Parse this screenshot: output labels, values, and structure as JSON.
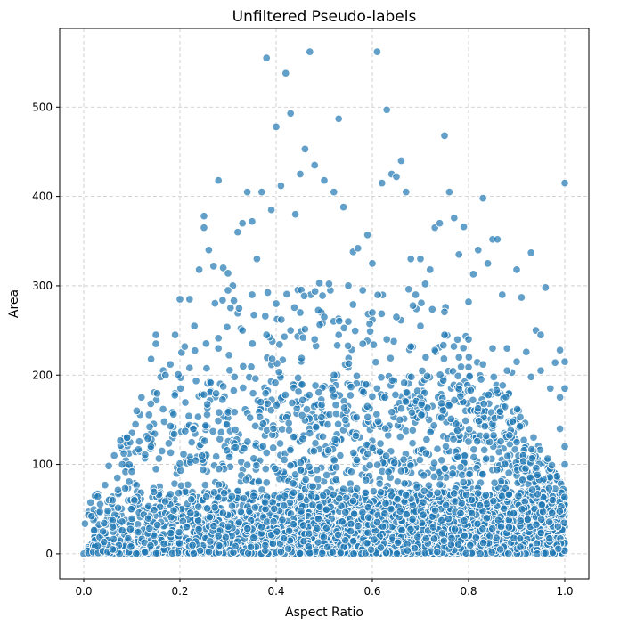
{
  "chart_data": {
    "type": "scatter",
    "title": "Unfiltered Pseudo-labels",
    "xlabel": "Aspect Ratio",
    "ylabel": "Area",
    "xlim": [
      -0.05,
      1.05
    ],
    "ylim": [
      -28,
      588
    ],
    "x_ticks": [
      0.0,
      0.2,
      0.4,
      0.6,
      0.8,
      1.0
    ],
    "x_tick_labels": [
      "0.0",
      "0.2",
      "0.4",
      "0.6",
      "0.8",
      "1.0"
    ],
    "y_ticks": [
      0,
      100,
      200,
      300,
      400,
      500
    ],
    "y_tick_labels": [
      "0",
      "100",
      "200",
      "300",
      "400",
      "500"
    ],
    "grid": true,
    "marker_color": "#1f77b4",
    "marker_alpha": 0.7,
    "marker_edge_color": "#ffffff",
    "series": [
      {
        "points": [
          [
            0.0,
            0
          ],
          [
            0.01,
            1
          ],
          [
            0.02,
            2
          ],
          [
            0.03,
            1
          ],
          [
            0.04,
            3
          ],
          [
            0.05,
            2
          ],
          [
            0.06,
            5
          ],
          [
            0.04,
            25
          ],
          [
            0.05,
            48
          ],
          [
            0.06,
            60
          ],
          [
            0.07,
            85
          ],
          [
            0.08,
            100
          ],
          [
            0.09,
            130
          ],
          [
            0.1,
            92
          ],
          [
            0.11,
            160
          ],
          [
            0.12,
            175
          ],
          [
            0.14,
            218
          ],
          [
            0.15,
            235
          ],
          [
            0.15,
            245
          ],
          [
            0.16,
            198
          ],
          [
            0.17,
            200
          ],
          [
            0.18,
            212
          ],
          [
            0.19,
            245
          ],
          [
            0.2,
            285
          ],
          [
            0.21,
            232
          ],
          [
            0.22,
            285
          ],
          [
            0.22,
            208
          ],
          [
            0.23,
            255
          ],
          [
            0.24,
            318
          ],
          [
            0.25,
            378
          ],
          [
            0.25,
            365
          ],
          [
            0.26,
            340
          ],
          [
            0.27,
            322
          ],
          [
            0.28,
            418
          ],
          [
            0.29,
            320
          ],
          [
            0.3,
            314
          ],
          [
            0.31,
            300
          ],
          [
            0.32,
            360
          ],
          [
            0.33,
            370
          ],
          [
            0.34,
            405
          ],
          [
            0.35,
            372
          ],
          [
            0.36,
            330
          ],
          [
            0.37,
            405
          ],
          [
            0.38,
            555
          ],
          [
            0.39,
            385
          ],
          [
            0.4,
            478
          ],
          [
            0.41,
            412
          ],
          [
            0.42,
            538
          ],
          [
            0.43,
            493
          ],
          [
            0.44,
            380
          ],
          [
            0.45,
            425
          ],
          [
            0.46,
            453
          ],
          [
            0.47,
            562
          ],
          [
            0.48,
            435
          ],
          [
            0.49,
            303
          ],
          [
            0.5,
            418
          ],
          [
            0.51,
            302
          ],
          [
            0.52,
            405
          ],
          [
            0.53,
            487
          ],
          [
            0.54,
            388
          ],
          [
            0.55,
            300
          ],
          [
            0.56,
            338
          ],
          [
            0.57,
            342
          ],
          [
            0.58,
            295
          ],
          [
            0.59,
            357
          ],
          [
            0.6,
            325
          ],
          [
            0.61,
            562
          ],
          [
            0.62,
            415
          ],
          [
            0.63,
            497
          ],
          [
            0.64,
            425
          ],
          [
            0.65,
            422
          ],
          [
            0.66,
            440
          ],
          [
            0.67,
            405
          ],
          [
            0.68,
            330
          ],
          [
            0.69,
            290
          ],
          [
            0.7,
            330
          ],
          [
            0.71,
            302
          ],
          [
            0.72,
            318
          ],
          [
            0.73,
            365
          ],
          [
            0.74,
            370
          ],
          [
            0.75,
            468
          ],
          [
            0.76,
            405
          ],
          [
            0.77,
            376
          ],
          [
            0.78,
            335
          ],
          [
            0.79,
            366
          ],
          [
            0.8,
            282
          ],
          [
            0.81,
            313
          ],
          [
            0.82,
            340
          ],
          [
            0.83,
            398
          ],
          [
            0.84,
            325
          ],
          [
            0.85,
            352
          ],
          [
            0.86,
            352
          ],
          [
            0.87,
            290
          ],
          [
            0.88,
            230
          ],
          [
            0.89,
            203
          ],
          [
            0.9,
            318
          ],
          [
            0.91,
            287
          ],
          [
            0.92,
            226
          ],
          [
            0.93,
            337
          ],
          [
            0.94,
            250
          ],
          [
            0.95,
            245
          ],
          [
            0.96,
            298
          ],
          [
            0.97,
            185
          ],
          [
            0.98,
            214
          ],
          [
            0.99,
            228
          ],
          [
            1.0,
            415
          ],
          [
            1.0,
            215
          ],
          [
            1.0,
            185
          ],
          [
            0.99,
            175
          ],
          [
            1.0,
            120
          ],
          [
            0.99,
            140
          ],
          [
            1.0,
            100
          ],
          [
            0.3,
            295
          ],
          [
            0.35,
            290
          ],
          [
            0.4,
            280
          ],
          [
            0.45,
            270
          ],
          [
            0.5,
            265
          ],
          [
            0.55,
            260
          ],
          [
            0.6,
            270
          ],
          [
            0.65,
            265
          ],
          [
            0.7,
            255
          ],
          [
            0.75,
            245
          ],
          [
            0.8,
            240
          ],
          [
            0.85,
            230
          ],
          [
            0.9,
            215
          ],
          [
            0.95,
            205
          ],
          [
            0.28,
            230
          ],
          [
            0.33,
            250
          ],
          [
            0.38,
            245
          ],
          [
            0.43,
            250
          ],
          [
            0.48,
            240
          ],
          [
            0.53,
            245
          ],
          [
            0.58,
            235
          ],
          [
            0.63,
            240
          ],
          [
            0.68,
            232
          ],
          [
            0.73,
            228
          ],
          [
            0.78,
            220
          ],
          [
            0.83,
            212
          ],
          [
            0.88,
            205
          ],
          [
            0.93,
            198
          ]
        ]
      }
    ]
  }
}
